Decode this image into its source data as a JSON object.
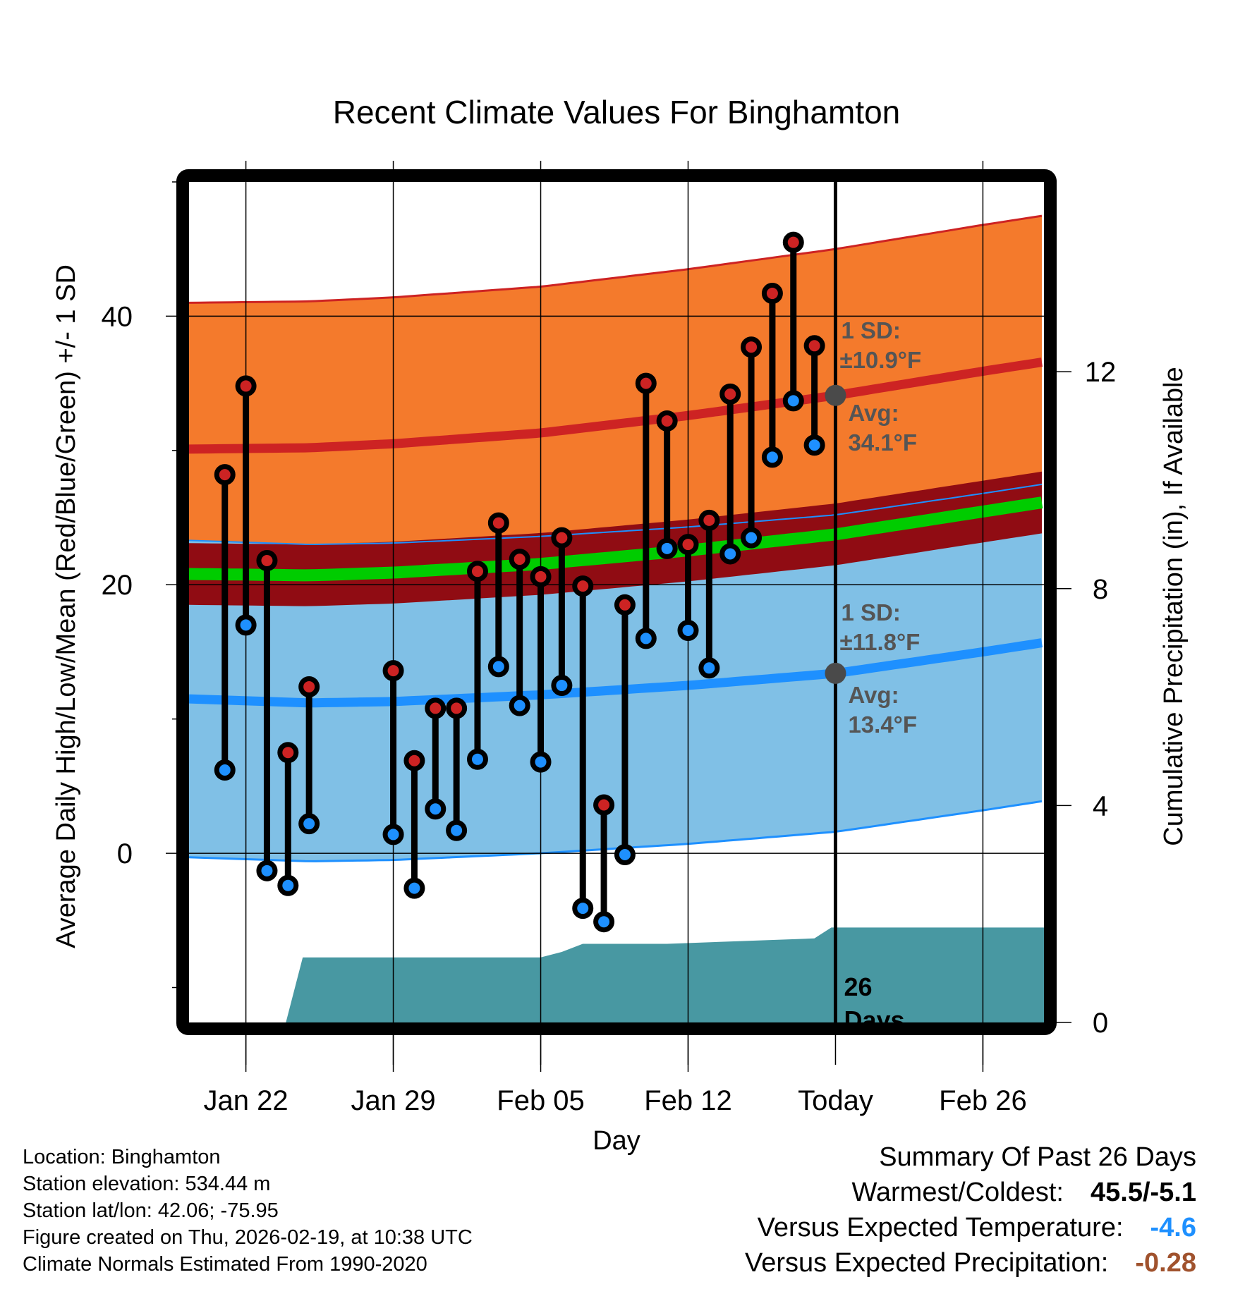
{
  "chart_data": {
    "type": "line",
    "title": "Recent Climate Values For Binghamton",
    "xlabel": "Day",
    "ylabel": "Average Daily High/Low/Mean (Red/Blue/Green) +/- 1 SD",
    "y2label": "Cumulative Precipitation (in), If Available",
    "ylim": [
      -12.6,
      50
    ],
    "y_ticks": [
      0,
      20,
      40
    ],
    "y_minor_ticks": [
      -10,
      10,
      30,
      50
    ],
    "y2lim": [
      0,
      15.5
    ],
    "y2_ticks": [
      0,
      4,
      8,
      12
    ],
    "x_range_days": [
      -2.7,
      37.9
    ],
    "x_ticks": [
      {
        "day": 0,
        "label": "Jan 22"
      },
      {
        "day": 7,
        "label": "Jan 29"
      },
      {
        "day": 14,
        "label": "Feb 05"
      },
      {
        "day": 21,
        "label": "Feb 12"
      },
      {
        "day": 28,
        "label": "Today"
      },
      {
        "day": 35,
        "label": "Feb 26"
      }
    ],
    "grid": true,
    "today_day": 28,
    "observed": {
      "days": [
        -1,
        0,
        1,
        2,
        3,
        7,
        8,
        9,
        10,
        11,
        12,
        13,
        14,
        15,
        16,
        17,
        18,
        19,
        20,
        21,
        22,
        23,
        24,
        25,
        26,
        27
      ],
      "highs": [
        28.2,
        34.8,
        21.8,
        7.5,
        12.4,
        13.6,
        6.9,
        10.8,
        10.8,
        21.0,
        24.6,
        21.9,
        20.6,
        23.5,
        19.9,
        3.6,
        18.5,
        35.0,
        32.2,
        23.0,
        24.8,
        34.2,
        37.7,
        41.7,
        45.5,
        37.8
      ],
      "lows": [
        6.2,
        17.0,
        -1.3,
        -2.4,
        2.2,
        1.4,
        -2.6,
        3.3,
        1.7,
        7.0,
        13.9,
        11.0,
        6.8,
        12.5,
        -4.1,
        -5.1,
        -0.1,
        16.0,
        22.7,
        16.6,
        13.8,
        22.3,
        23.5,
        29.5,
        33.7,
        30.4
      ]
    },
    "normals": {
      "days": [
        -2.7,
        3,
        7,
        14,
        21,
        28,
        35,
        37.9
      ],
      "high_avg": [
        30.1,
        30.2,
        30.5,
        31.3,
        32.6,
        34.1,
        35.9,
        36.6
      ],
      "high_sd": 10.9,
      "low_avg": [
        11.5,
        11.2,
        11.3,
        11.8,
        12.5,
        13.4,
        15.0,
        15.7
      ],
      "low_sd": 11.8
    },
    "precip_cumulative": {
      "days": [
        1.9,
        2.7,
        14,
        15,
        16,
        20,
        27,
        27.8,
        37.9
      ],
      "values": [
        0,
        1.2,
        1.2,
        1.3,
        1.45,
        1.45,
        1.55,
        1.75,
        1.75
      ]
    },
    "annotations": {
      "high_sd": "1 SD:",
      "high_sd_value": "±10.9°F",
      "high_avg": "Avg:",
      "high_avg_value": "34.1°F",
      "low_sd": "1 SD:",
      "low_sd_value": "±11.8°F",
      "low_avg": "Avg:",
      "low_avg_value": "13.4°F",
      "days_count": "26",
      "days_word": "Days"
    },
    "colors": {
      "high_band": "#f47a2c",
      "high_line": "#cd2323",
      "mean_band": "#900c13",
      "mean_line": "#00cc00",
      "low_band": "#80c0e6",
      "low_line": "#1e90ff",
      "precip": "#4898a2",
      "marker_high": "#cd2323",
      "marker_low": "#1e90ff"
    }
  },
  "info": {
    "location": "Location: Binghamton",
    "elevation": "Station elevation: 534.44 m",
    "latlon": "Station lat/lon: 42.06; -75.95",
    "created": "Figure created on Thu, 2026-02-19, at 10:38 UTC",
    "normals": "Climate Normals Estimated From 1990-2020"
  },
  "summary": {
    "title": "Summary Of Past 26 Days",
    "warmest_coldest_label": "Warmest/Coldest:",
    "warmest_coldest_value": "45.5/-5.1",
    "temp_label": "Versus Expected Temperature:",
    "temp_value": "-4.6",
    "temp_color": "#1e90ff",
    "precip_label": "Versus Expected Precipitation:",
    "precip_value": "-0.28",
    "precip_color": "#a0522d"
  }
}
